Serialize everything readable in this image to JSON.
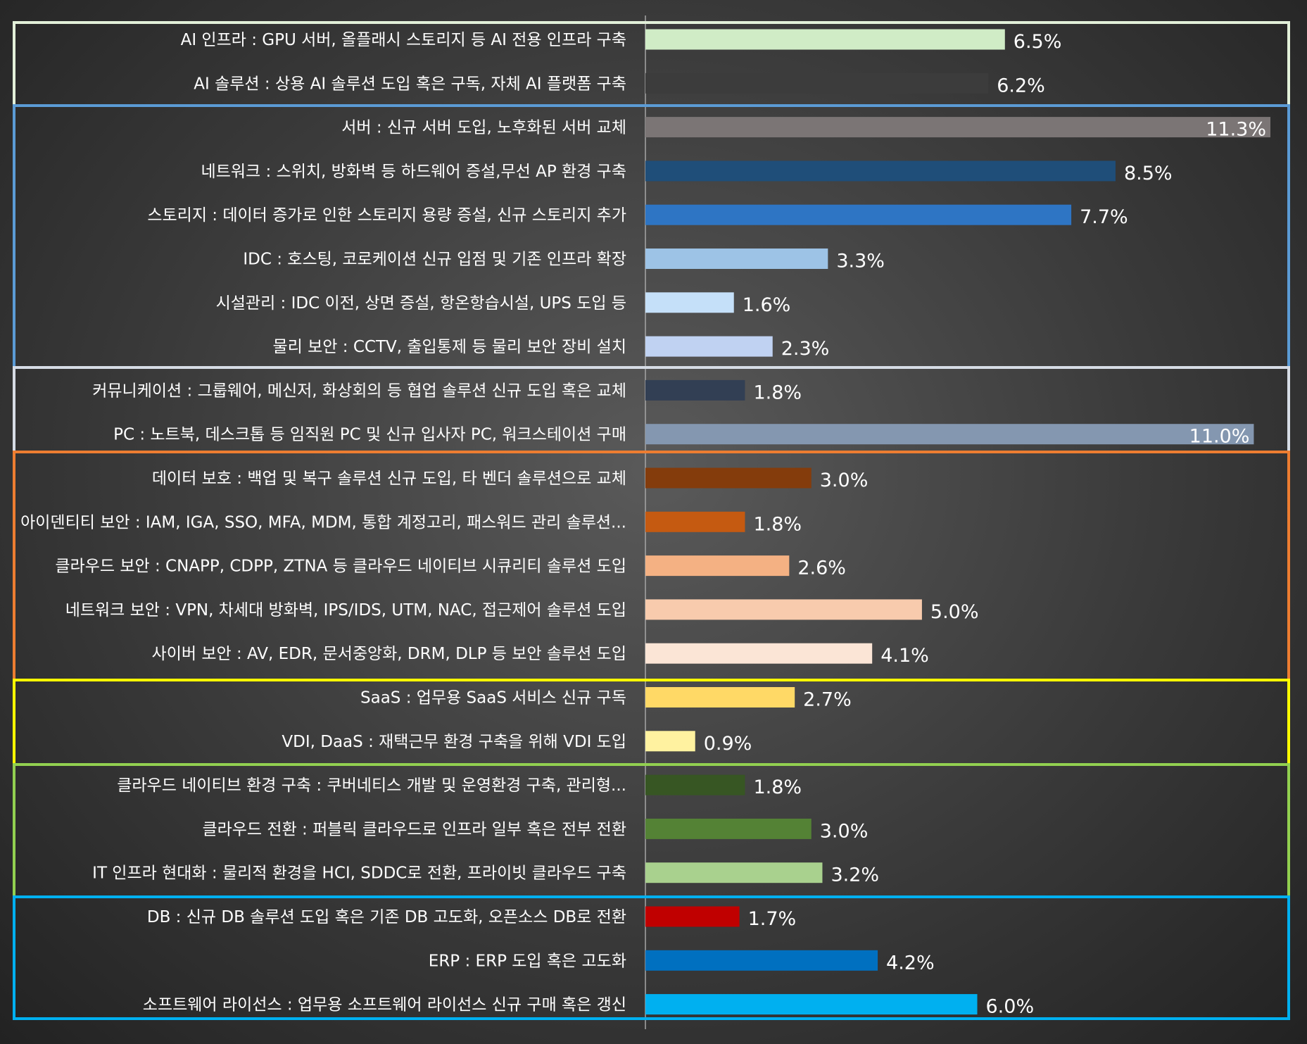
{
  "chart_data": {
    "type": "bar",
    "orientation": "horizontal",
    "xlim": [
      0,
      11.3
    ],
    "grid": false,
    "categories": [
      "AI 인프라 : GPU 서버, 올플래시 스토리지 등 AI 전용 인프라 구축",
      "AI 솔루션 : 상용 AI 솔루션 도입 혹은 구독, 자체 AI 플랫폼 구축",
      "서버 : 신규 서버 도입, 노후화된 서버 교체",
      "네트워크 : 스위치, 방화벽 등 하드웨어 증설,무선 AP 환경 구축",
      "스토리지 : 데이터 증가로 인한 스토리지 용량 증설, 신규 스토리지 추가",
      "IDC : 호스팅, 코로케이션 신규 입점 및 기존 인프라 확장",
      "시설관리 : IDC 이전, 상면 증설, 항온항습시설, UPS 도입 등",
      "물리 보안 : CCTV, 출입통제 등 물리 보안 장비 설치",
      "커뮤니케이션 : 그룹웨어, 메신저, 화상회의 등 협업 솔루션 신규 도입 혹은 교체",
      "PC : 노트북, 데스크톱 등 임직원 PC 및 신규 입사자 PC, 워크스테이션 구매",
      "데이터 보호 : 백업 및 복구 솔루션 신규 도입, 타 벤더 솔루션으로 교체",
      "아이덴티티 보안 : IAM, IGA, SSO, MFA, MDM, 통합 계정고리, 패스워드 관리 솔루션...",
      "클라우드 보안 : CNAPP, CDPP, ZTNA 등 클라우드 네이티브 시큐리티 솔루션 도입",
      "네트워크 보안 : VPN, 차세대 방화벽, IPS/IDS, UTM, NAC, 접근제어 솔루션 도입",
      "사이버 보안 : AV, EDR, 문서중앙화, DRM, DLP 등 보안 솔루션 도입",
      "SaaS : 업무용 SaaS 서비스 신규 구독",
      "VDI, DaaS : 재택근무 환경 구축을 위해 VDI 도입",
      "클라우드 네이티브 환경 구축 : 쿠버네티스 개발 및 운영환경 구축, 관리형...",
      "클라우드 전환 : 퍼블릭 클라우드로 인프라 일부 혹은 전부 전환",
      "IT 인프라 현대화 : 물리적 환경을 HCI, SDDC로 전환, 프라이빗 클라우드 구축",
      "DB : 신규 DB 솔루션 도입 혹은 기존 DB 고도화, 오픈소스 DB로 전환",
      "ERP : ERP 도입 혹은 고도화",
      "소프트웨어 라이선스 : 업무용 소프트웨어 라이선스 신규 구매 혹은 갱신"
    ],
    "values": [
      6.5,
      6.2,
      11.3,
      8.5,
      7.7,
      3.3,
      1.6,
      2.3,
      1.8,
      11.0,
      3.0,
      1.8,
      2.6,
      5.0,
      4.1,
      2.7,
      0.9,
      1.8,
      3.0,
      3.2,
      1.7,
      4.2,
      6.0
    ],
    "value_labels": [
      "6.5%",
      "6.2%",
      "11.3%",
      "8.5%",
      "7.7%",
      "3.3%",
      "1.6%",
      "2.3%",
      "1.8%",
      "11.0%",
      "3.0%",
      "1.8%",
      "2.6%",
      "5.0%",
      "4.1%",
      "2.7%",
      "0.9%",
      "1.8%",
      "3.0%",
      "3.2%",
      "1.7%",
      "4.2%",
      "6.0%"
    ],
    "bar_colors": [
      "#d0ecc6",
      "#3c3c3c",
      "#7b7575",
      "#1f4e79",
      "#2e75c4",
      "#9dc3e6",
      "#c5e0f9",
      "#c0d2f2",
      "#323f54",
      "#8497b0",
      "#843c0c",
      "#c55a11",
      "#f4b183",
      "#f8cbad",
      "#fbe5d6",
      "#ffd966",
      "#fff2a0",
      "#375623",
      "#548235",
      "#a9d18e",
      "#c00000",
      "#0070c0",
      "#00b0f0"
    ],
    "value_label_inside": [
      false,
      false,
      true,
      false,
      false,
      false,
      false,
      false,
      false,
      true,
      false,
      false,
      false,
      false,
      false,
      false,
      false,
      false,
      false,
      false,
      false,
      false,
      false
    ],
    "groups": [
      {
        "start": 0,
        "end": 1,
        "border_color": "#e2f0d9"
      },
      {
        "start": 2,
        "end": 7,
        "border_color": "#5b9bd5"
      },
      {
        "start": 8,
        "end": 9,
        "border_color": "#d6dce5"
      },
      {
        "start": 10,
        "end": 14,
        "border_color": "#ed7d31"
      },
      {
        "start": 15,
        "end": 16,
        "border_color": "#ffff00"
      },
      {
        "start": 17,
        "end": 19,
        "border_color": "#92d050"
      },
      {
        "start": 20,
        "end": 22,
        "border_color": "#00b0f0"
      }
    ],
    "axis_line_color": "#a6a6a6"
  }
}
